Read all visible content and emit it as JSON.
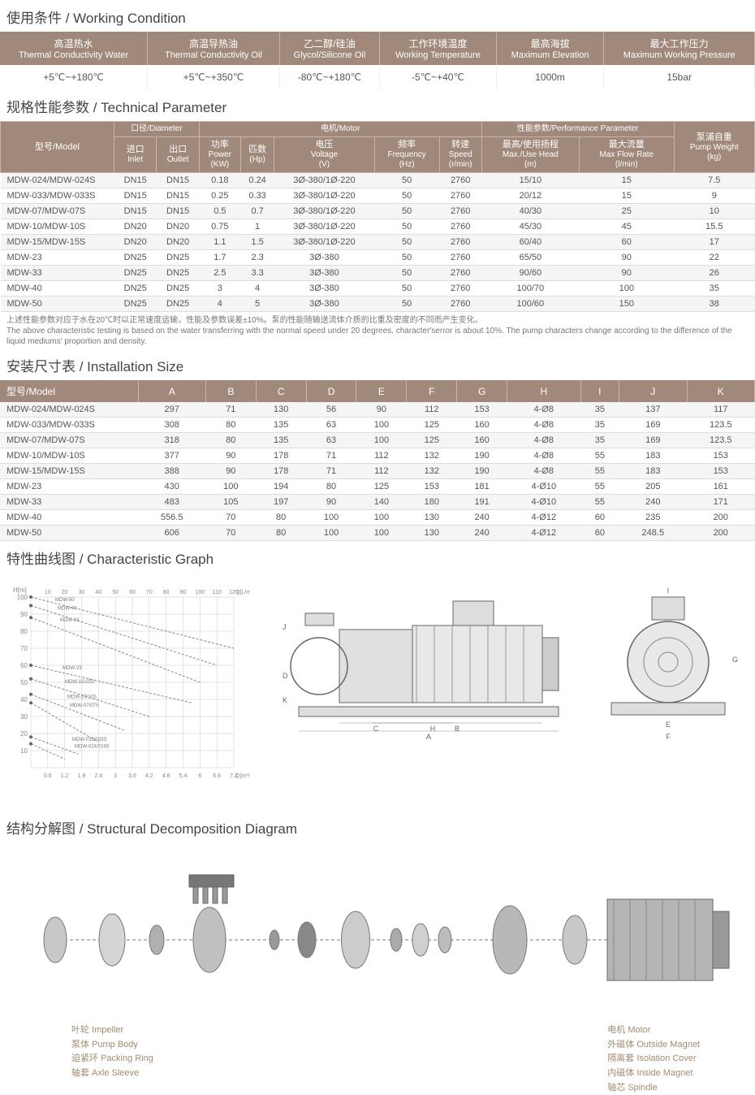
{
  "sections": {
    "working_condition": {
      "cn": "使用条件",
      "en": "Working Condition"
    },
    "technical_parameter": {
      "cn": "规格性能参数",
      "en": "Technical Parameter"
    },
    "installation_size": {
      "cn": "安装尺寸表",
      "en": "Installation Size"
    },
    "characteristic_graph": {
      "cn": "特性曲线图",
      "en": "Characteristic Graph"
    },
    "structural": {
      "cn": "结构分解图",
      "en": "Structural Decomposition Diagram"
    }
  },
  "working_condition": {
    "headers": [
      {
        "cn": "高温热水",
        "en": "Thermal Conductivity Water"
      },
      {
        "cn": "高温导热油",
        "en": "Thermal Conductivity Oil"
      },
      {
        "cn": "乙二醇/硅油",
        "en": "Glycol/Silicone Oil"
      },
      {
        "cn": "工作环境温度",
        "en": "Working Temperature"
      },
      {
        "cn": "最高海拔",
        "en": "Maximum Elevation"
      },
      {
        "cn": "最大工作压力",
        "en": "Maximum Working Pressure"
      }
    ],
    "values": [
      "+5℃~+180℃",
      "+5℃~+350℃",
      "-80℃~+180℃",
      "-5℃~+40℃",
      "1000m",
      "15bar"
    ]
  },
  "technical_parameter": {
    "group_headers": [
      {
        "cn": "口径",
        "en": "Diameter",
        "span": 2
      },
      {
        "cn": "电机",
        "en": "Motor",
        "span": 5
      },
      {
        "cn": "性能参数",
        "en": "Performance Parameter",
        "span": 2
      }
    ],
    "model_header": {
      "cn": "型号",
      "en": "Model"
    },
    "weight_header": {
      "cn": "泵浦自重",
      "en": "Pump Weight",
      "unit": "(kg)"
    },
    "sub_headers": [
      {
        "cn": "进口",
        "en": "Inlet"
      },
      {
        "cn": "出口",
        "en": "Outlet"
      },
      {
        "cn": "功率",
        "en": "Power",
        "unit": "(KW)"
      },
      {
        "cn": "匹数",
        "en": "(Hp)"
      },
      {
        "cn": "电压",
        "en": "Voltage",
        "unit": "(V)"
      },
      {
        "cn": "频率",
        "en": "Frequency",
        "unit": "(Hz)"
      },
      {
        "cn": "转速",
        "en": "Speed",
        "unit": "(r/min)"
      },
      {
        "cn": "最高/使用扬程",
        "en": "Max./Use Head",
        "unit": "(m)"
      },
      {
        "cn": "最大流量",
        "en": "Max Flow Rate",
        "unit": "(l/min)"
      }
    ],
    "rows": [
      [
        "MDW-024/MDW-024S",
        "DN15",
        "DN15",
        "0.18",
        "0.24",
        "3Ø-380/1Ø-220",
        "50",
        "2760",
        "15/10",
        "15",
        "7.5"
      ],
      [
        "MDW-033/MDW-033S",
        "DN15",
        "DN15",
        "0.25",
        "0.33",
        "3Ø-380/1Ø-220",
        "50",
        "2760",
        "20/12",
        "15",
        "9"
      ],
      [
        "MDW-07/MDW-07S",
        "DN15",
        "DN15",
        "0.5",
        "0.7",
        "3Ø-380/1Ø-220",
        "50",
        "2760",
        "40/30",
        "25",
        "10"
      ],
      [
        "MDW-10/MDW-10S",
        "DN20",
        "DN20",
        "0.75",
        "1",
        "3Ø-380/1Ø-220",
        "50",
        "2760",
        "45/30",
        "45",
        "15.5"
      ],
      [
        "MDW-15/MDW-15S",
        "DN20",
        "DN20",
        "1.1",
        "1.5",
        "3Ø-380/1Ø-220",
        "50",
        "2760",
        "60/40",
        "60",
        "17"
      ],
      [
        "MDW-23",
        "DN25",
        "DN25",
        "1.7",
        "2.3",
        "3Ø-380",
        "50",
        "2760",
        "65/50",
        "90",
        "22"
      ],
      [
        "MDW-33",
        "DN25",
        "DN25",
        "2.5",
        "3.3",
        "3Ø-380",
        "50",
        "2760",
        "90/60",
        "90",
        "26"
      ],
      [
        "MDW-40",
        "DN25",
        "DN25",
        "3",
        "4",
        "3Ø-380",
        "50",
        "2760",
        "100/70",
        "100",
        "35"
      ],
      [
        "MDW-50",
        "DN25",
        "DN25",
        "4",
        "5",
        "3Ø-380",
        "50",
        "2760",
        "100/60",
        "150",
        "38"
      ]
    ]
  },
  "note_cn": "上述性能参数对应于水在20℃时以正常速度运输，性能及参数误差±10%。泵的性能随输送流体介质的比重及密度的不同而产生变化。",
  "note_en": "The above characteristic testing is based on the water transferring with the normal speed under 20 degrees. character'serror is about 10%. The pump characters change according to the difference of the liquid mediums' proportion and density.",
  "installation_size": {
    "model_header": {
      "cn": "型号",
      "en": "Model"
    },
    "cols": [
      "A",
      "B",
      "C",
      "D",
      "E",
      "F",
      "G",
      "H",
      "I",
      "J",
      "K"
    ],
    "rows": [
      [
        "MDW-024/MDW-024S",
        "297",
        "71",
        "130",
        "56",
        "90",
        "112",
        "153",
        "4-Ø8",
        "35",
        "137",
        "117"
      ],
      [
        "MDW-033/MDW-033S",
        "308",
        "80",
        "135",
        "63",
        "100",
        "125",
        "160",
        "4-Ø8",
        "35",
        "169",
        "123.5"
      ],
      [
        "MDW-07/MDW-07S",
        "318",
        "80",
        "135",
        "63",
        "100",
        "125",
        "160",
        "4-Ø8",
        "35",
        "169",
        "123.5"
      ],
      [
        "MDW-10/MDW-10S",
        "377",
        "90",
        "178",
        "71",
        "112",
        "132",
        "190",
        "4-Ø8",
        "55",
        "183",
        "153"
      ],
      [
        "MDW-15/MDW-15S",
        "388",
        "90",
        "178",
        "71",
        "112",
        "132",
        "190",
        "4-Ø8",
        "55",
        "183",
        "153"
      ],
      [
        "MDW-23",
        "430",
        "100",
        "194",
        "80",
        "125",
        "153",
        "181",
        "4-Ø10",
        "55",
        "205",
        "161"
      ],
      [
        "MDW-33",
        "483",
        "105",
        "197",
        "90",
        "140",
        "180",
        "191",
        "4-Ø10",
        "55",
        "240",
        "171"
      ],
      [
        "MDW-40",
        "556.5",
        "70",
        "80",
        "100",
        "100",
        "130",
        "240",
        "4-Ø12",
        "60",
        "235",
        "200"
      ],
      [
        "MDW-50",
        "606",
        "70",
        "80",
        "100",
        "100",
        "130",
        "240",
        "4-Ø12",
        "60",
        "248.5",
        "200"
      ]
    ]
  },
  "chart": {
    "y_label": "H[m]",
    "x_label_top": "Q[L/min]",
    "x_label_bottom": "Q[m³/h]",
    "y_ticks": [
      0,
      10,
      20,
      30,
      40,
      50,
      60,
      70,
      80,
      90,
      100
    ],
    "x_ticks_top": [
      0,
      10,
      20,
      30,
      40,
      50,
      60,
      70,
      80,
      90,
      100,
      110,
      120
    ],
    "x_ticks_bottom": [
      0,
      0.6,
      1.2,
      1.8,
      2.4,
      3.0,
      3.6,
      4.2,
      4.8,
      5.4,
      6.0,
      6.6,
      7.2
    ],
    "series": [
      "MDW-50",
      "MDW-40",
      "MDW-33",
      "MDW-23",
      "MDW-15/15S",
      "MDW-10/10S",
      "MDW-07/07S",
      "MDW-033/033S",
      "MDW-024/024S"
    ],
    "colors": {
      "grid": "#d0c8c0",
      "line": "#888",
      "background": "#ffffff"
    }
  },
  "dimension_labels": [
    "A",
    "B",
    "C",
    "D",
    "E",
    "F",
    "G",
    "H",
    "I",
    "J",
    "K"
  ],
  "structural_labels": {
    "left": [
      {
        "cn": "叶轮",
        "en": "Impeller"
      },
      {
        "cn": "泵体",
        "en": "Pump Body"
      },
      {
        "cn": "迫紧环",
        "en": "Packing Ring"
      },
      {
        "cn": "轴套",
        "en": "Axle Sleeve"
      }
    ],
    "right": [
      {
        "cn": "电机",
        "en": "Motor"
      },
      {
        "cn": "外磁体",
        "en": "Outside Magnet"
      },
      {
        "cn": "隔离套",
        "en": "Isolation Cover"
      },
      {
        "cn": "内磁体",
        "en": "Inside Magnet"
      },
      {
        "cn": "轴芯",
        "en": "Spindle"
      }
    ]
  }
}
